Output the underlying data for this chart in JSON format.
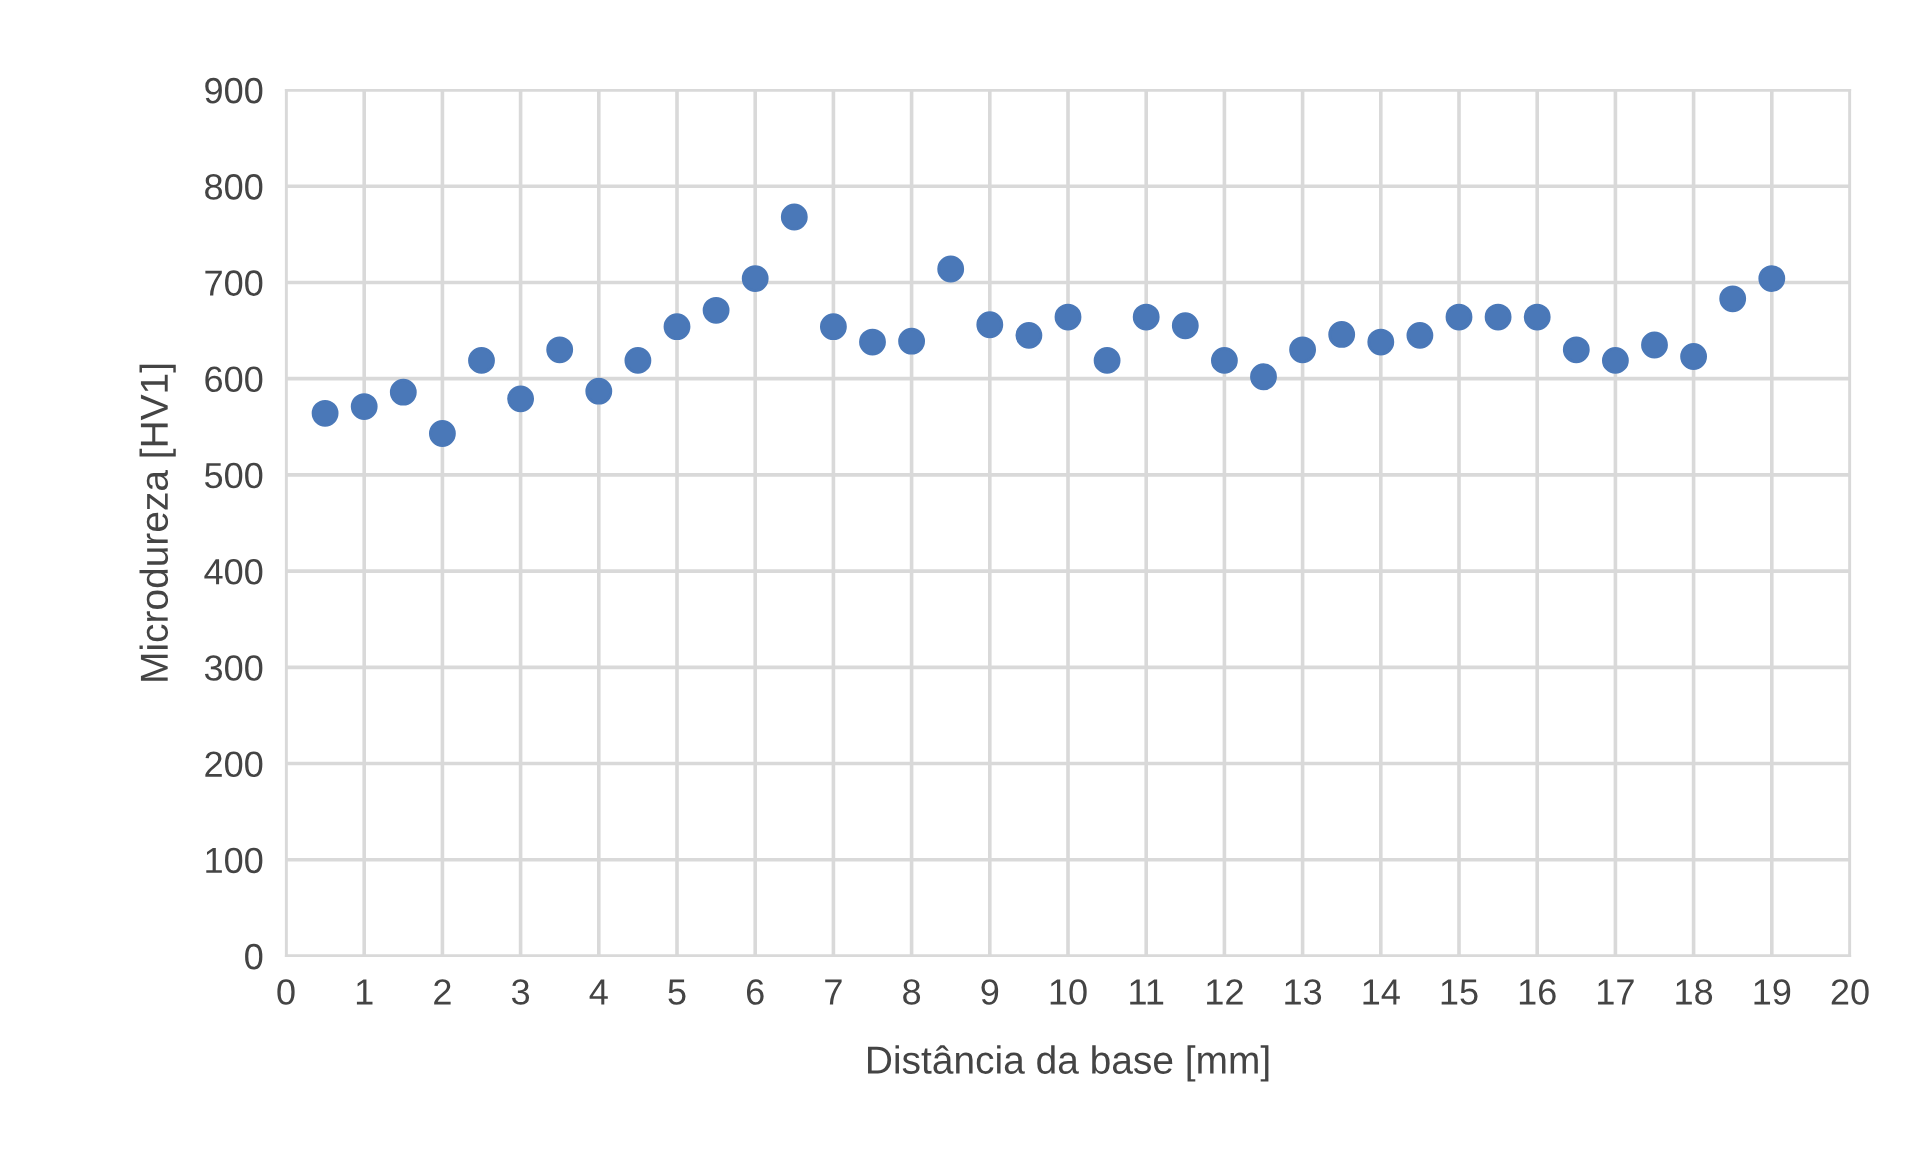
{
  "chart_data": {
    "type": "scatter",
    "xlabel": "Distância da base [mm]",
    "ylabel": "Microdureza [HV1]",
    "x": [
      0.5,
      1,
      1.5,
      2,
      2.5,
      3,
      3.5,
      4,
      4.5,
      5,
      5.5,
      6,
      6.5,
      7,
      7.5,
      8,
      8.5,
      9,
      9.5,
      10,
      10.5,
      11,
      11.5,
      12,
      12.5,
      13,
      13.5,
      14,
      14.5,
      15,
      15.5,
      16,
      16.5,
      17,
      17.5,
      18,
      18.5,
      19
    ],
    "series": [
      {
        "color": "#4a78b8",
        "values": [
          564,
          571,
          586,
          543,
          619,
          579,
          630,
          587,
          619,
          654,
          671,
          704,
          768,
          654,
          638,
          639,
          714,
          656,
          645,
          664,
          619,
          664,
          655,
          619,
          602,
          630,
          646,
          638,
          645,
          664,
          664,
          664,
          630,
          619,
          635,
          623,
          683,
          704
        ]
      }
    ],
    "xlim": [
      0,
      20
    ],
    "xticks": [
      0,
      1,
      2,
      3,
      4,
      5,
      6,
      7,
      8,
      9,
      10,
      11,
      12,
      13,
      14,
      15,
      16,
      17,
      18,
      19,
      20
    ],
    "ylim": [
      0,
      900
    ],
    "yticks": [
      0,
      100,
      200,
      300,
      400,
      500,
      600,
      700,
      800,
      900
    ],
    "grid": true,
    "marker": "circle",
    "legend": false
  }
}
